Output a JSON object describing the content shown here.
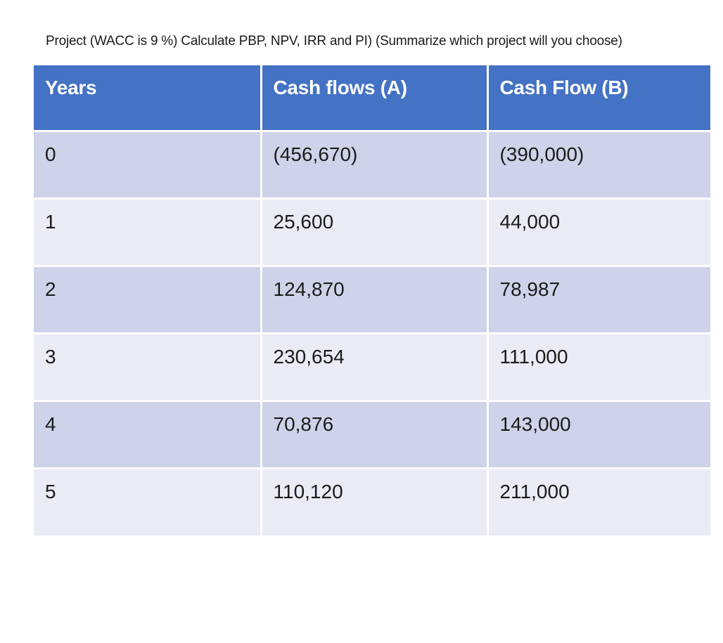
{
  "title": "Project (WACC is 9 %) Calculate PBP, NPV, IRR and PI) (Summarize which project will you choose)",
  "table": {
    "header": {
      "columns": [
        "Years",
        "Cash flows (A)",
        "Cash Flow (B)"
      ]
    },
    "rows": [
      {
        "year": "0",
        "cash_flow_a": "(456,670)",
        "cash_flow_b": "(390,000)"
      },
      {
        "year": "1",
        "cash_flow_a": "25,600",
        "cash_flow_b": "44,000"
      },
      {
        "year": "2",
        "cash_flow_a": "124,870",
        "cash_flow_b": "78,987"
      },
      {
        "year": "3",
        "cash_flow_a": "230,654",
        "cash_flow_b": "111,000"
      },
      {
        "year": "4",
        "cash_flow_a": "70,876",
        "cash_flow_b": "143,000"
      },
      {
        "year": "5",
        "cash_flow_a": "110,120",
        "cash_flow_b": "211,000"
      }
    ],
    "colors": {
      "header_bg": "#4472c4",
      "header_text": "#ffffff",
      "row_band_dark": "#ced3e9",
      "row_band_light": "#e9ebf5",
      "body_text": "#1b1b1b",
      "divider": "#ffffff"
    },
    "wacc_percent": "9 %"
  }
}
